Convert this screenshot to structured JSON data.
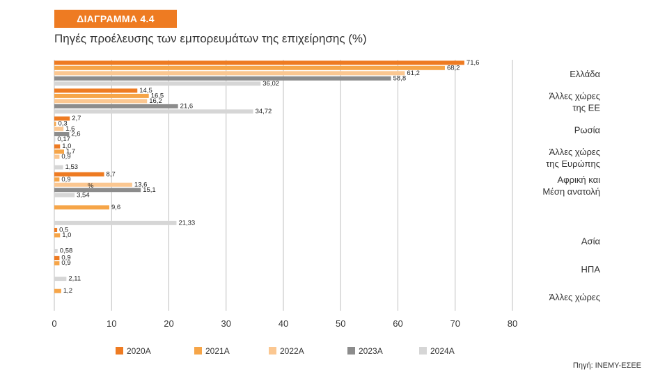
{
  "header": {
    "badge": "ΔΙΑΓΡΑΜΜΑ 4.4",
    "title": "Πηγές προέλευσης των εμπορευμάτων της επιχείρησης (%)"
  },
  "source": "Πηγή: ΙΝΕΜΥ-ΕΣΕΕ",
  "chart_data": {
    "type": "bar",
    "orientation": "horizontal",
    "xlim": [
      0,
      80
    ],
    "xticks": [
      0,
      10,
      20,
      30,
      40,
      50,
      60,
      70,
      80
    ],
    "legend_position": "bottom",
    "categories": [
      {
        "label": [
          "Ελλάδα"
        ],
        "values": [
          71.6,
          68.2,
          61.2,
          58.8,
          36.02
        ],
        "labels": [
          "71,6",
          "68,2",
          "61,2",
          "58,8",
          "36,02"
        ]
      },
      {
        "label": [
          "Άλλες χώρες",
          "της ΕΕ"
        ],
        "values": [
          14.5,
          16.5,
          16.2,
          21.6,
          34.72
        ],
        "labels": [
          "14,5",
          "16,5",
          "16,2",
          "21,6",
          "34,72"
        ]
      },
      {
        "label": [
          "Ρωσία"
        ],
        "values": [
          2.7,
          0.3,
          1.6,
          2.6,
          0.17
        ],
        "labels": [
          "2,7",
          "0,3",
          "1,6",
          "2,6",
          "0,17"
        ]
      },
      {
        "label": [
          "Άλλες χώρες",
          "της Ευρώπης"
        ],
        "values": [
          1.0,
          1.7,
          0.9,
          null,
          1.53
        ],
        "labels": [
          "1,0",
          "1,7",
          "0,9",
          "",
          "1,53"
        ]
      },
      {
        "label": [
          "Αφρική και",
          "Μέση ανατολή"
        ],
        "values": [
          8.7,
          0.9,
          13.6,
          15.1,
          3.54
        ],
        "labels": [
          "8,7",
          "0,9",
          "13,6",
          "15,1",
          "3,54"
        ]
      },
      {
        "label": [
          ""
        ],
        "values": [
          null,
          9.6,
          null,
          null,
          21.33
        ],
        "labels": [
          "",
          "9,6",
          "",
          "",
          "21,33"
        ]
      },
      {
        "label": [
          "Ασία"
        ],
        "values": [
          0.5,
          1.0,
          null,
          null,
          0.58
        ],
        "labels": [
          "0,5",
          "1,0",
          "",
          "",
          "0,58"
        ]
      },
      {
        "label": [
          "ΗΠΑ"
        ],
        "values": [
          0.9,
          0.9,
          null,
          null,
          2.11
        ],
        "labels": [
          "0,9",
          "0,9",
          "",
          "",
          "2,11"
        ]
      },
      {
        "label": [
          "Άλλες χώρες"
        ],
        "values": [
          null,
          1.2,
          null,
          null,
          null
        ],
        "labels": [
          "",
          "1,2",
          "",
          "",
          ""
        ]
      }
    ],
    "stray_label": "%",
    "series": [
      {
        "name": "2020Α",
        "color": "#ee7b22"
      },
      {
        "name": "2021Α",
        "color": "#f6a548"
      },
      {
        "name": "2022Α",
        "color": "#fbc791"
      },
      {
        "name": "2023Α",
        "color": "#8c8c8c"
      },
      {
        "name": "2024Α",
        "color": "#d6d6d6"
      }
    ]
  }
}
